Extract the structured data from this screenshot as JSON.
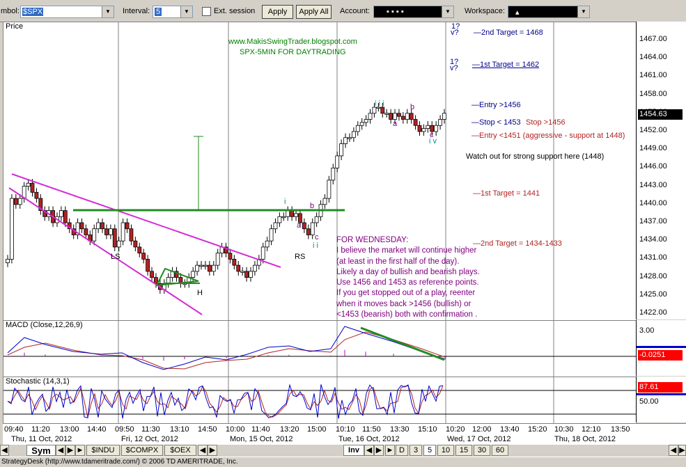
{
  "toolbar": {
    "symbol_label": "mbol:",
    "symbol_value": "$SPX",
    "interval_label": "Interval:",
    "interval_value": "5",
    "ext_session_label": "Ext. session",
    "apply_label": "Apply",
    "apply_all_label": "Apply All",
    "account_label": "Account:",
    "account_value": "▪   ▪   ▪   ▪",
    "workspace_label": "Workspace:",
    "workspace_value": "▴"
  },
  "price_pane": {
    "label": "Price",
    "y_ticks": [
      "1467.00",
      "1464.00",
      "1461.00",
      "1458.00",
      "1455.00",
      "1452.00",
      "1449.00",
      "1446.00",
      "1443.00",
      "1440.00",
      "1437.00",
      "1434.00",
      "1431.00",
      "1428.00",
      "1425.00",
      "1422.00"
    ],
    "last_price": "1454.63",
    "header_line1": "www.MakisSwingTrader.blogspot.com",
    "header_line2": "SPX-5MIN FOR DAYTRADING",
    "annotations": {
      "target2": "2nd Target = 1468",
      "target1": "1st Target = 1462",
      "q1": "1?",
      "v1": "v?",
      "q2": "1?",
      "v2": "v?",
      "entry_long": "Entry >1456",
      "stop_long": "Stop < 1453",
      "stop_short": "Stop >1456",
      "entry_short": "Entry <1451 (aggressive - support at 1448)",
      "watch": "Watch out for strong support here (1448)",
      "short_target1": "1st Target = 1441",
      "short_target2": "2nd Target = 1434-1433",
      "wave_iii": "i i i",
      "wave_a_top": "a",
      "wave_b_top": "b",
      "wave_c_top": "c",
      "wave_iv": "i v",
      "wave_i": "i",
      "wave_a_mid": "a",
      "wave_b_mid": "b",
      "wave_c_mid": "c",
      "wave_ii": "i i",
      "ls": "LS",
      "h": "H",
      "rs": "RS"
    },
    "note": [
      "FOR WEDNESDAY:",
      "I believe the market will continue higher",
      "(at least in the first half of the day).",
      "Likely a day of bullish and bearish plays.",
      "Use 1456 and 1453 as reference points.",
      "If you get stopped out of a play, reenter",
      "when it moves back >1456 (bullish) or",
      "<1453 (bearish) both with confirmation ."
    ]
  },
  "macd_pane": {
    "label": "MACD (Close,12,26,9)",
    "tick_top": "3.00",
    "value": "-0.0251"
  },
  "stoch_pane": {
    "label": "Stochastic (14,3,1)",
    "value": "87.61",
    "tick_mid": "50.00"
  },
  "x_axis": {
    "times": [
      "09:40",
      "11:20",
      "13:00",
      "14:40",
      "09:50",
      "11:30",
      "13:10",
      "14:50",
      "10:00",
      "11:40",
      "13:20",
      "15:00",
      "10:10",
      "11:50",
      "13:30",
      "15:10",
      "10:20",
      "12:00",
      "13:40",
      "15:20",
      "10:30",
      "12:10",
      "13:50"
    ],
    "days": [
      "Thu, 11 Oct, 2012",
      "Fri, 12 Oct, 2012",
      "Mon, 15 Oct, 2012",
      "Tue, 16 Oct, 2012",
      "Wed, 17 Oct, 2012",
      "Thu, 18 Oct, 2012"
    ]
  },
  "tabs": {
    "sym": "Sym",
    "indu": "$INDU",
    "compx": "$COMPX",
    "oex": "$OEX",
    "inv": "Inv",
    "d": "D",
    "t3": "3",
    "t5": "5",
    "t10": "10",
    "t15": "15",
    "t30": "30",
    "t60": "60"
  },
  "status_text": "StrategyDesk (http://www.tdameritrade.com/) © 2006 TD AMERITRADE, Inc.",
  "colors": {
    "up_candle": "#ffffff",
    "down_candle": "#b22222",
    "trendline": "#d42ad4",
    "neckline": "#228b22",
    "target_text": "#00008b",
    "short_text": "#b22222",
    "note_text": "#800080",
    "header_text": "#008000",
    "marker": "#ff0000"
  },
  "chart_data": {
    "type": "candlestick",
    "title": "SPX-5MIN FOR DAYTRADING",
    "ylim": [
      1420,
      1470
    ],
    "closes": [
      1431,
      1441,
      1440,
      1441,
      1443,
      1443.5,
      1442,
      1441,
      1439,
      1438,
      1439,
      1437,
      1438,
      1439,
      1437,
      1436,
      1435,
      1437,
      1436,
      1435,
      1434,
      1436,
      1437,
      1436,
      1435,
      1436,
      1433,
      1434,
      1437,
      1436,
      1434,
      1433,
      1432,
      1431,
      1429,
      1428,
      1427,
      1426,
      1427,
      1428,
      1429,
      1428,
      1427,
      1427,
      1428,
      1429,
      1430,
      1430,
      1430,
      1429,
      1430,
      1432,
      1433,
      1432,
      1431,
      1430,
      1429,
      1429,
      1428,
      1429,
      1430,
      1431,
      1433,
      1434,
      1436,
      1437,
      1438,
      1438,
      1439,
      1438,
      1438.5,
      1437,
      1436,
      1435,
      1437,
      1438,
      1440,
      1441,
      1444,
      1446,
      1448,
      1450,
      1451,
      1451,
      1452,
      1453,
      1453.5,
      1454,
      1455,
      1456,
      1456,
      1455,
      1455,
      1454,
      1455,
      1454.5,
      1454,
      1455,
      1454,
      1453,
      1452,
      1452.5,
      1453,
      1452,
      1453,
      1454,
      1455
    ]
  }
}
